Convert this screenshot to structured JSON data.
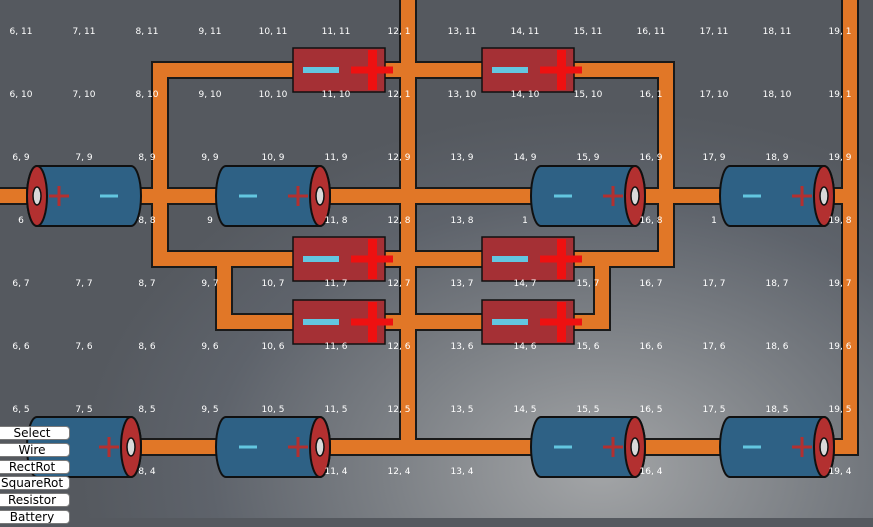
{
  "grid": {
    "cols": [
      6,
      7,
      8,
      9,
      10,
      11,
      12,
      13,
      14,
      15,
      16,
      17,
      18,
      19
    ],
    "rows": [
      11,
      10,
      9,
      8,
      7,
      6,
      5,
      4
    ]
  },
  "grid_labels": {
    "11": [
      "6, 11",
      "7, 11",
      "8, 11",
      "9, 11",
      "10, 11",
      "11, 11",
      "12, 1",
      "13, 11",
      "14, 11",
      "15, 11",
      "16, 11",
      "17, 11",
      "18, 11",
      "19, 1"
    ],
    "10": [
      "6, 10",
      "7, 10",
      "8, 10",
      "9, 10",
      "10, 10",
      "11, 10",
      "12, 1",
      "13, 10",
      "14, 10",
      "15, 10",
      "16, 1",
      "17, 10",
      "18, 10",
      "19, 1"
    ],
    "9": [
      "6, 9",
      "7, 9",
      "8, 9",
      "9, 9",
      "10, 9",
      "11, 9",
      "12, 9",
      "13, 9",
      "14, 9",
      "15, 9",
      "16, 9",
      "17, 9",
      "18, 9",
      "19, 9"
    ],
    "8": [
      "6",
      "",
      "8, 8",
      "9",
      "",
      "11, 8",
      "12, 8",
      "13, 8",
      "1",
      "",
      "16, 8",
      "1",
      "",
      "19, 8"
    ],
    "7": [
      "6, 7",
      "7, 7",
      "8, 7",
      "9, 7",
      "10, 7",
      "11, 7",
      "12, 7",
      "13, 7",
      "14, 7",
      "15, 7",
      "16, 7",
      "17, 7",
      "18, 7",
      "19, 7"
    ],
    "6": [
      "6, 6",
      "7, 6",
      "8, 6",
      "9, 6",
      "10, 6",
      "11, 6",
      "12, 6",
      "13, 6",
      "14, 6",
      "15, 6",
      "16, 6",
      "17, 6",
      "18, 6",
      "19, 6"
    ],
    "5": [
      "6, 5",
      "7, 5",
      "8, 5",
      "9, 5",
      "10, 5",
      "11, 5",
      "12, 5",
      "13, 5",
      "14, 5",
      "15, 5",
      "16, 5",
      "17, 5",
      "18, 5",
      "19, 5"
    ],
    "4": [
      "",
      "",
      "8, 4",
      "",
      "",
      "11, 4",
      "12, 4",
      "13, 4",
      "",
      "",
      "16, 4",
      "",
      "",
      "19, 4"
    ]
  },
  "components": {
    "batteries": [
      {
        "col": 7,
        "row": 9,
        "polarity": "plus-left"
      },
      {
        "col": 10,
        "row": 9,
        "polarity": "minus-left"
      },
      {
        "col": 15,
        "row": 9,
        "polarity": "minus-left"
      },
      {
        "col": 18,
        "row": 9,
        "polarity": "minus-left"
      },
      {
        "col": 7,
        "row": 4,
        "polarity": "minus-left"
      },
      {
        "col": 10,
        "row": 4,
        "polarity": "minus-left"
      },
      {
        "col": 15,
        "row": 4,
        "polarity": "minus-left"
      },
      {
        "col": 18,
        "row": 4,
        "polarity": "minus-left"
      }
    ],
    "cells": [
      {
        "col": 11,
        "row": 11
      },
      {
        "col": 14,
        "row": 11
      },
      {
        "col": 11,
        "row": 7
      },
      {
        "col": 14,
        "row": 7
      },
      {
        "col": 11,
        "row": 6
      },
      {
        "col": 14,
        "row": 6
      }
    ]
  },
  "toolbar": {
    "tools": [
      "Select",
      "Wire",
      "RectRot",
      "SquareRot",
      "Resistor",
      "Battery"
    ]
  },
  "colors": {
    "wire": "#e17727",
    "wire_outline": "#1a1a1a",
    "battery_body": "#2e6185",
    "battery_cap": "#b33030",
    "cell_body": "#a53035",
    "plus_red": "#ee1111",
    "minus_cyan": "#63c6e0",
    "grid_label": "#ffffff"
  }
}
